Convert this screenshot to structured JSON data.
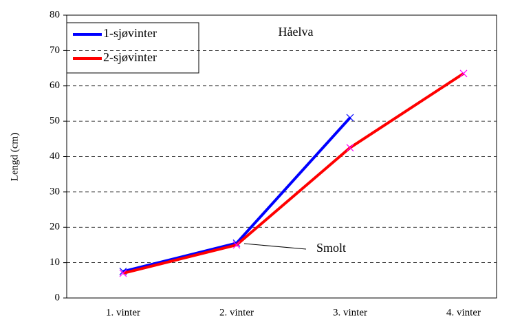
{
  "chart_data": {
    "type": "line",
    "annotations": [
      "Håelva",
      "Smolt"
    ],
    "ylabel": "Lengd (cm)",
    "categories": [
      "1. vinter",
      "2. vinter",
      "3. vinter",
      "4. vinter"
    ],
    "series": [
      {
        "name": "1-sjøvinter",
        "color": "#0000ff",
        "values": [
          7.5,
          15.5,
          51,
          null
        ]
      },
      {
        "name": "2-sjøvinter",
        "color": "#ff0000",
        "values": [
          7,
          15,
          42.5,
          63.5
        ]
      }
    ],
    "ylim": [
      0,
      80
    ],
    "yticks": [
      0,
      10,
      20,
      30,
      40,
      50,
      60,
      70,
      80
    ],
    "grid": true,
    "legend": "upper left"
  }
}
